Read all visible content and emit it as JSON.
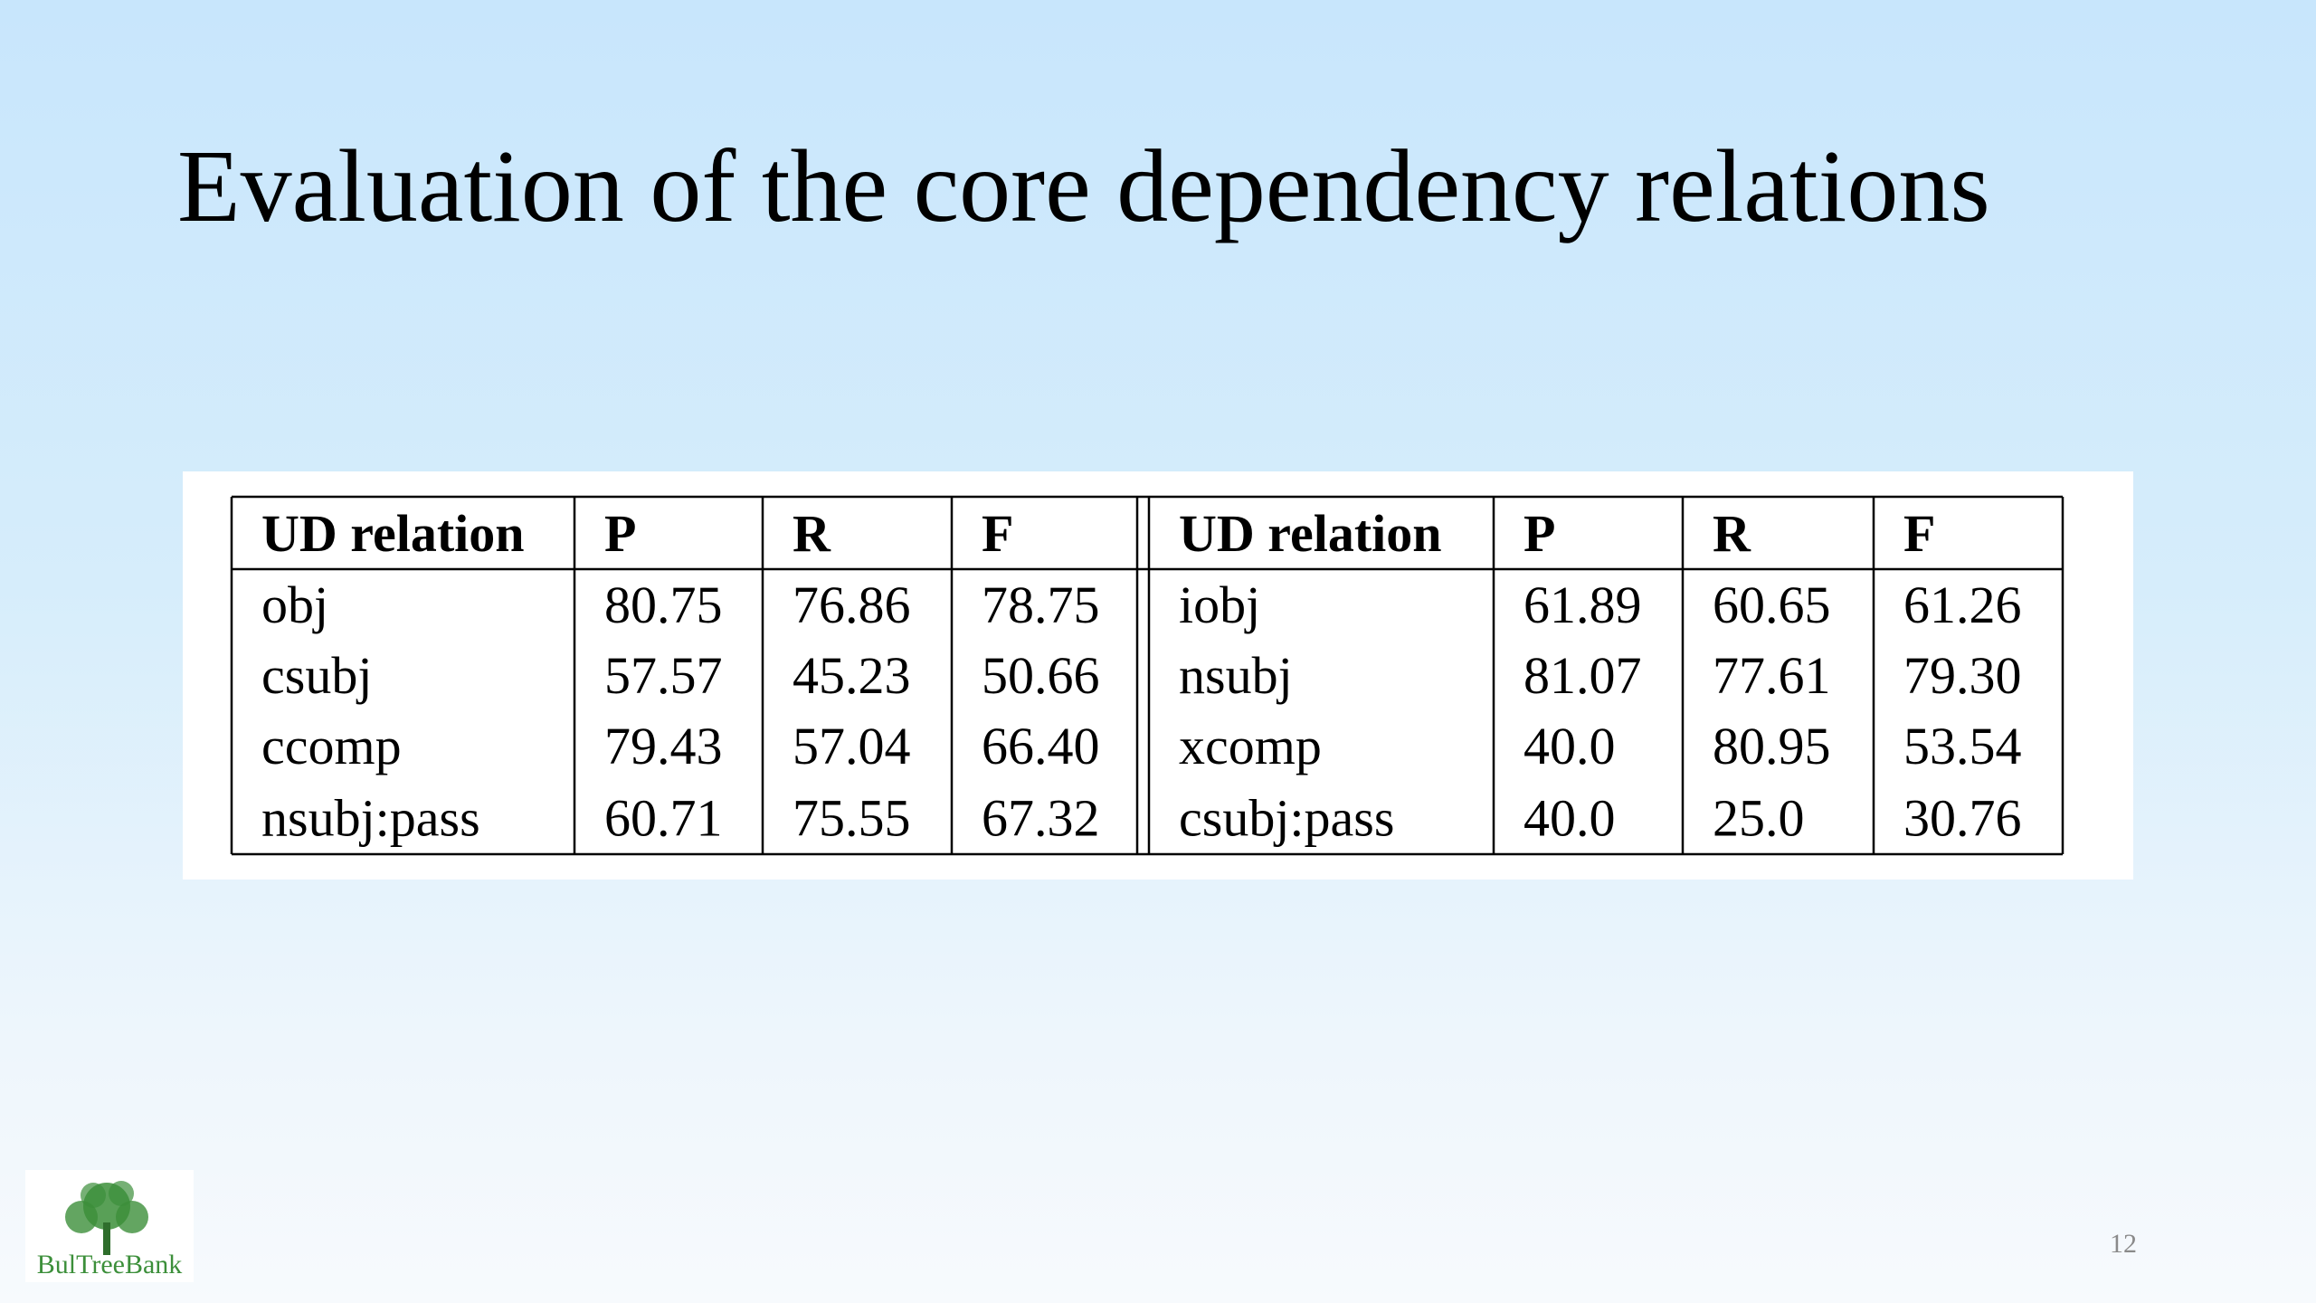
{
  "title": "Evaluation of the core dependency relations",
  "table": {
    "header": [
      "UD relation",
      "P",
      "R",
      "F",
      "UD relation",
      "P",
      "R",
      "F"
    ],
    "rows": [
      [
        "obj",
        "80.75",
        "76.86",
        "78.75",
        "iobj",
        "61.89",
        "60.65",
        "61.26"
      ],
      [
        "csubj",
        "57.57",
        "45.23",
        "50.66",
        "nsubj",
        "81.07",
        "77.61",
        "79.30"
      ],
      [
        "ccomp",
        "79.43",
        "57.04",
        "66.40",
        "xcomp",
        "40.0",
        "80.95",
        "53.54"
      ],
      [
        "nsubj:pass",
        "60.71",
        "75.55",
        "67.32",
        "csubj:pass",
        "40.0",
        "25.0",
        "30.76"
      ]
    ]
  },
  "logo": "BulTreeBank",
  "page_number": "12"
}
